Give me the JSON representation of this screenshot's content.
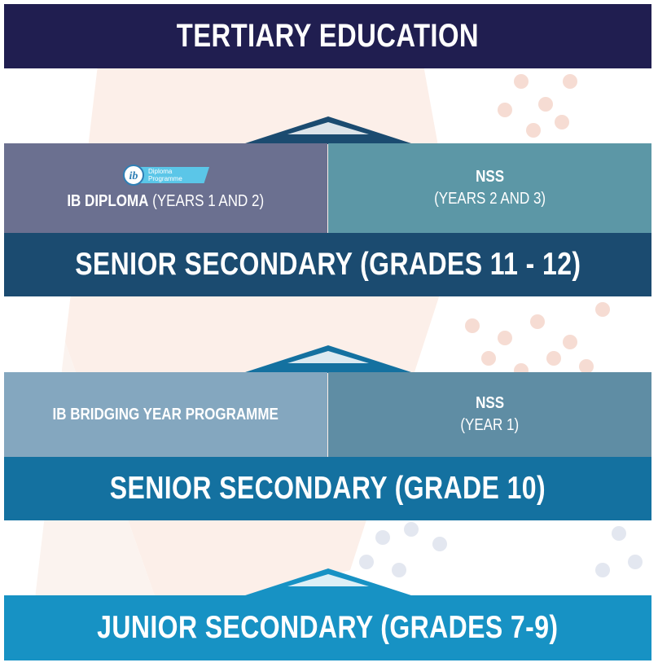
{
  "tertiary": {
    "label": "TERTIARY EDUCATION"
  },
  "upper_tier": {
    "ib_diploma": {
      "logo_text": [
        "Diploma",
        "Programme"
      ],
      "logo_letters": "ib",
      "bold": "IB DIPLOMA",
      "rest": " (YEARS 1 AND 2)"
    },
    "nss": {
      "title": "NSS",
      "years": "(YEARS 2 AND 3)"
    },
    "band": "SENIOR SECONDARY (GRADES 11 - 12)"
  },
  "middle_tier": {
    "ib_bridging": {
      "label": "IB BRIDGING YEAR PROGRAMME"
    },
    "nss": {
      "title": "NSS",
      "years": "(YEAR 1)"
    },
    "band": "SENIOR SECONDARY (GRADE 10)"
  },
  "junior": {
    "label": "JUNIOR SECONDARY (GRADES 7-9)"
  },
  "colors": {
    "tertiary": "#201e50",
    "ib_diploma": "#6b7090",
    "nss_upper": "#5c97a6",
    "senior_upper": "#1b4b70",
    "ib_bridging": "#84a7bf",
    "nss_lower": "#5f8da4",
    "senior_grade10": "#1471a0",
    "junior": "#1792c4"
  }
}
